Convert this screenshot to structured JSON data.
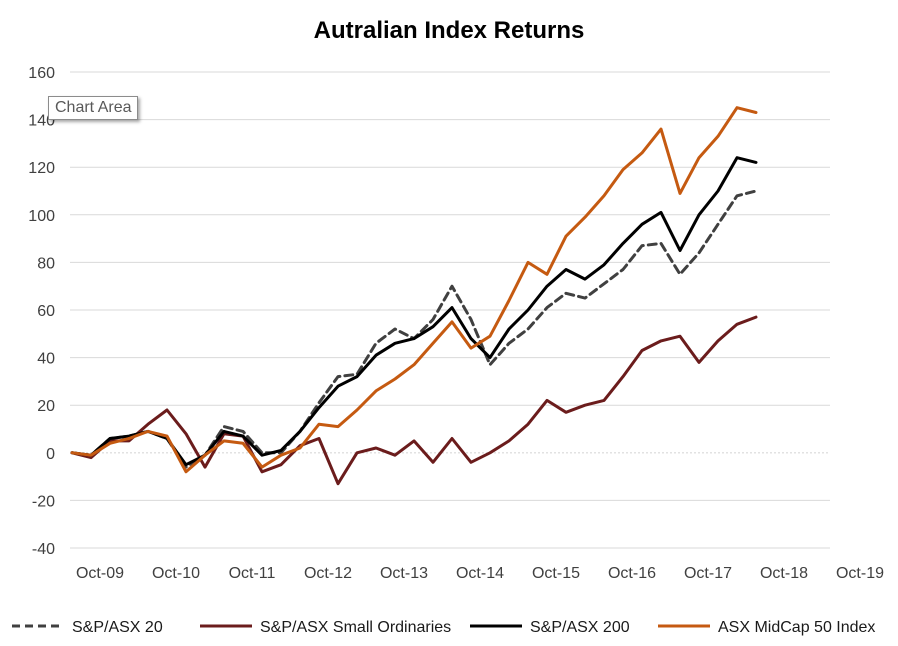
{
  "tooltip": "Chart Area",
  "colors": {
    "asx20": "#404040",
    "small_ords": "#6b1c1c",
    "asx200": "#000000",
    "midcap50": "#c55a11",
    "grid": "#d9d9d9"
  },
  "chart_data": {
    "type": "line",
    "title": "Autralian Index Returns",
    "xlabel": "",
    "ylabel": "",
    "ylim": [
      -40,
      160
    ],
    "yticks": [
      -40,
      -20,
      0,
      20,
      40,
      60,
      80,
      100,
      120,
      140,
      160
    ],
    "x_tick_labels": [
      "Oct-09",
      "Oct-10",
      "Oct-11",
      "Oct-12",
      "Oct-13",
      "Oct-14",
      "Oct-15",
      "Oct-16",
      "Oct-17",
      "Oct-18",
      "Oct-19"
    ],
    "x_start": "Jun-09",
    "x_step": "quarter",
    "legend_position": "bottom",
    "grid": true,
    "series": [
      {
        "name": "S&P/ASX 20",
        "color": "#404040",
        "dash": "dashed",
        "values": [
          0,
          -1,
          6,
          7,
          9,
          6,
          -6,
          -1,
          11,
          9,
          0,
          0,
          9,
          21,
          32,
          33,
          46,
          52,
          48,
          56,
          70,
          56,
          37,
          46,
          52,
          61,
          67,
          65,
          71,
          77,
          87,
          88,
          75,
          84,
          96,
          108,
          110
        ]
      },
      {
        "name": "S&P/ASX Small Ordinaries",
        "color": "#6b1c1c",
        "dash": "solid",
        "values": [
          0,
          -2,
          5,
          5,
          12,
          18,
          8,
          -6,
          8,
          7,
          -8,
          -5,
          3,
          6,
          -13,
          0,
          2,
          -1,
          5,
          -4,
          6,
          -4,
          0,
          5,
          12,
          22,
          17,
          20,
          22,
          32,
          43,
          47,
          49,
          38,
          47,
          54,
          57
        ]
      },
      {
        "name": "S&P/ASX 200",
        "color": "#000000",
        "dash": "solid",
        "values": [
          0,
          -1,
          6,
          7,
          9,
          6,
          -5,
          -1,
          9,
          7,
          -1,
          1,
          9,
          19,
          28,
          32,
          41,
          46,
          48,
          53,
          61,
          48,
          40,
          52,
          60,
          70,
          77,
          73,
          79,
          88,
          96,
          101,
          85,
          100,
          110,
          124,
          122
        ]
      },
      {
        "name": "ASX MidCap 50 Index",
        "color": "#c55a11",
        "dash": "solid",
        "values": [
          0,
          -1,
          4,
          6,
          9,
          7,
          -8,
          -1,
          5,
          4,
          -6,
          -1,
          2,
          12,
          11,
          18,
          26,
          31,
          37,
          46,
          55,
          44,
          49,
          64,
          80,
          75,
          91,
          99,
          108,
          119,
          126,
          136,
          109,
          124,
          133,
          145,
          143
        ]
      }
    ]
  }
}
